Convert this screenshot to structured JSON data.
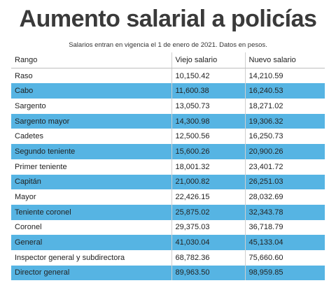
{
  "header": {
    "title": "Aumento salarial a policías",
    "subtitle": "Salarios entran en vigencia el 1 de enero de 2021. Datos en pesos."
  },
  "colors": {
    "title": "#3a3a3a",
    "row_highlight": "#56b4e3",
    "row_plain": "#ffffff"
  },
  "table": {
    "columns": [
      "Rango",
      "Viejo salario",
      "Nuevo salario"
    ],
    "rows": [
      [
        "Raso",
        "10,150.42",
        "14,210.59"
      ],
      [
        "Cabo",
        "11,600.38",
        "16,240.53"
      ],
      [
        "Sargento",
        "13,050.73",
        "18,271.02"
      ],
      [
        "Sargento mayor",
        "14,300.98",
        "19,306.32"
      ],
      [
        "Cadetes",
        "12,500.56",
        "16,250.73"
      ],
      [
        "Segundo teniente",
        "15,600.26",
        "20,900.26"
      ],
      [
        "Primer teniente",
        "18,001.32",
        "23,401.72"
      ],
      [
        "Capitán",
        "21,000.82",
        "26,251.03"
      ],
      [
        "Mayor",
        "22,426.15",
        "28,032.69"
      ],
      [
        "Teniente coronel",
        "25,875.02",
        "32,343.78"
      ],
      [
        "Coronel",
        "29,375.03",
        "36,718.79"
      ],
      [
        "General",
        "41,030.04",
        "45,133.04"
      ],
      [
        "Inspector general y subdirectora",
        "68,782.36",
        "75,660.60"
      ],
      [
        "Director general",
        "89,963.50",
        "98,959.85"
      ]
    ]
  }
}
